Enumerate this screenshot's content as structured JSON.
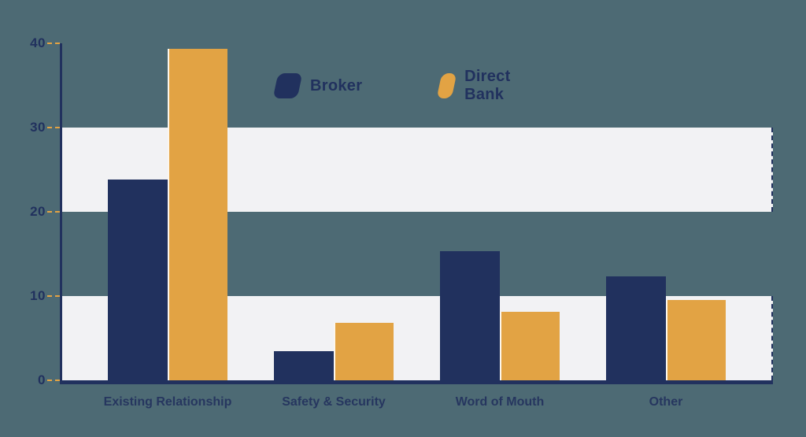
{
  "colors": {
    "background": "#4D6A74",
    "band": "#F2F2F4",
    "navy": "#21315E",
    "orange": "#E2A344",
    "label_text": "#26365F"
  },
  "legend": {
    "items": [
      {
        "label": "Broker",
        "swatch_color": "#21315E"
      },
      {
        "label": "Direct Bank",
        "swatch_color": "#E2A344"
      }
    ]
  },
  "chart_data": {
    "type": "bar",
    "title": "",
    "categories": [
      "Existing Relationship",
      "Safety & Security",
      "Word of Mouth",
      "Other"
    ],
    "series": [
      {
        "name": "Broker",
        "color": "#21315E",
        "values": [
          23.8,
          3.5,
          15.3,
          12.3
        ]
      },
      {
        "name": "Direct Bank",
        "color": "#E2A344",
        "values": [
          39.3,
          6.8,
          8.1,
          9.5
        ]
      }
    ],
    "ylim": [
      0,
      40
    ],
    "y_ticks": [
      0,
      10,
      20,
      30,
      40
    ],
    "bands": [
      [
        0,
        10
      ],
      [
        20,
        30
      ]
    ],
    "legend_position": "top-center",
    "grid": "alternating-horizontal-bands",
    "xlabel": "",
    "ylabel": ""
  }
}
